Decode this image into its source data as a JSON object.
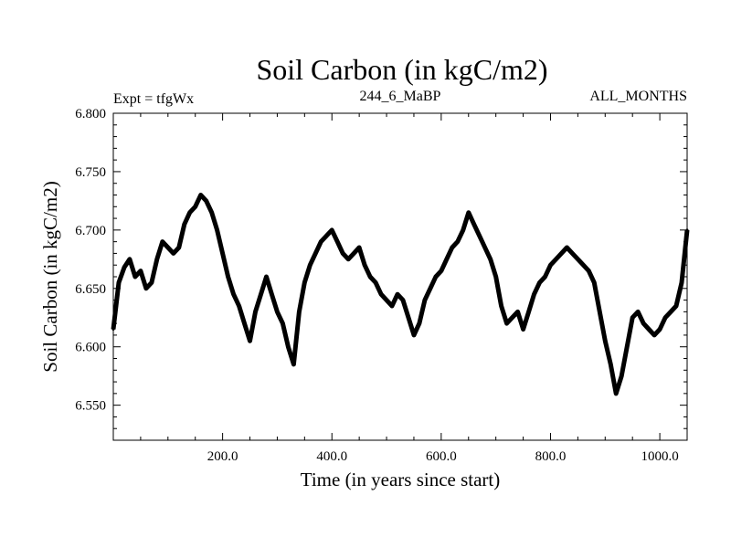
{
  "chart_data": {
    "type": "line",
    "title": "Soil Carbon (in kgC/m2)",
    "subtitle_left": "Expt = tfgWx",
    "subtitle_center": "244_6_MaBP",
    "subtitle_right": "ALL_MONTHS",
    "xlabel": "Time (in years since start)",
    "ylabel": "Soil Carbon (in kgC/m2)",
    "xlim": [
      0,
      1050
    ],
    "ylim": [
      6.52,
      6.8
    ],
    "x_ticks": [
      200,
      400,
      600,
      800,
      1000
    ],
    "x_tick_labels": [
      "200.0",
      "400.0",
      "600.0",
      "800.0",
      "1000.0"
    ],
    "y_ticks": [
      6.55,
      6.6,
      6.65,
      6.7,
      6.75,
      6.8
    ],
    "y_tick_labels": [
      "6.550",
      "6.600",
      "6.650",
      "6.700",
      "6.750",
      "6.800"
    ],
    "grid": false,
    "series": [
      {
        "name": "Soil Carbon",
        "color": "#000000",
        "x": [
          0,
          10,
          20,
          30,
          40,
          50,
          60,
          70,
          80,
          90,
          100,
          110,
          120,
          130,
          140,
          150,
          160,
          170,
          180,
          190,
          200,
          210,
          220,
          230,
          240,
          250,
          260,
          270,
          280,
          290,
          300,
          310,
          320,
          330,
          340,
          350,
          360,
          370,
          380,
          390,
          400,
          410,
          420,
          430,
          440,
          450,
          460,
          470,
          480,
          490,
          500,
          510,
          520,
          530,
          540,
          550,
          560,
          570,
          580,
          590,
          600,
          610,
          620,
          630,
          640,
          650,
          660,
          670,
          680,
          690,
          700,
          710,
          720,
          730,
          740,
          750,
          760,
          770,
          780,
          790,
          800,
          810,
          820,
          830,
          840,
          850,
          860,
          870,
          880,
          890,
          900,
          910,
          920,
          930,
          940,
          950,
          960,
          970,
          980,
          990,
          1000,
          1010,
          1020,
          1030,
          1040,
          1050
        ],
        "values": [
          6.615,
          6.655,
          6.668,
          6.675,
          6.66,
          6.665,
          6.65,
          6.655,
          6.675,
          6.69,
          6.685,
          6.68,
          6.685,
          6.705,
          6.715,
          6.72,
          6.73,
          6.725,
          6.715,
          6.7,
          6.68,
          6.66,
          6.645,
          6.635,
          6.62,
          6.605,
          6.63,
          6.645,
          6.66,
          6.645,
          6.63,
          6.62,
          6.6,
          6.585,
          6.63,
          6.655,
          6.67,
          6.68,
          6.69,
          6.695,
          6.7,
          6.69,
          6.68,
          6.675,
          6.68,
          6.685,
          6.67,
          6.66,
          6.655,
          6.645,
          6.64,
          6.635,
          6.645,
          6.64,
          6.625,
          6.61,
          6.62,
          6.64,
          6.65,
          6.66,
          6.665,
          6.675,
          6.685,
          6.69,
          6.7,
          6.715,
          6.705,
          6.695,
          6.685,
          6.675,
          6.66,
          6.635,
          6.62,
          6.625,
          6.63,
          6.615,
          6.63,
          6.645,
          6.655,
          6.66,
          6.67,
          6.675,
          6.68,
          6.685,
          6.68,
          6.675,
          6.67,
          6.665,
          6.655,
          6.63,
          6.605,
          6.585,
          6.56,
          6.575,
          6.6,
          6.625,
          6.63,
          6.62,
          6.615,
          6.61,
          6.615,
          6.625,
          6.63,
          6.635,
          6.655,
          6.7
        ]
      }
    ]
  }
}
